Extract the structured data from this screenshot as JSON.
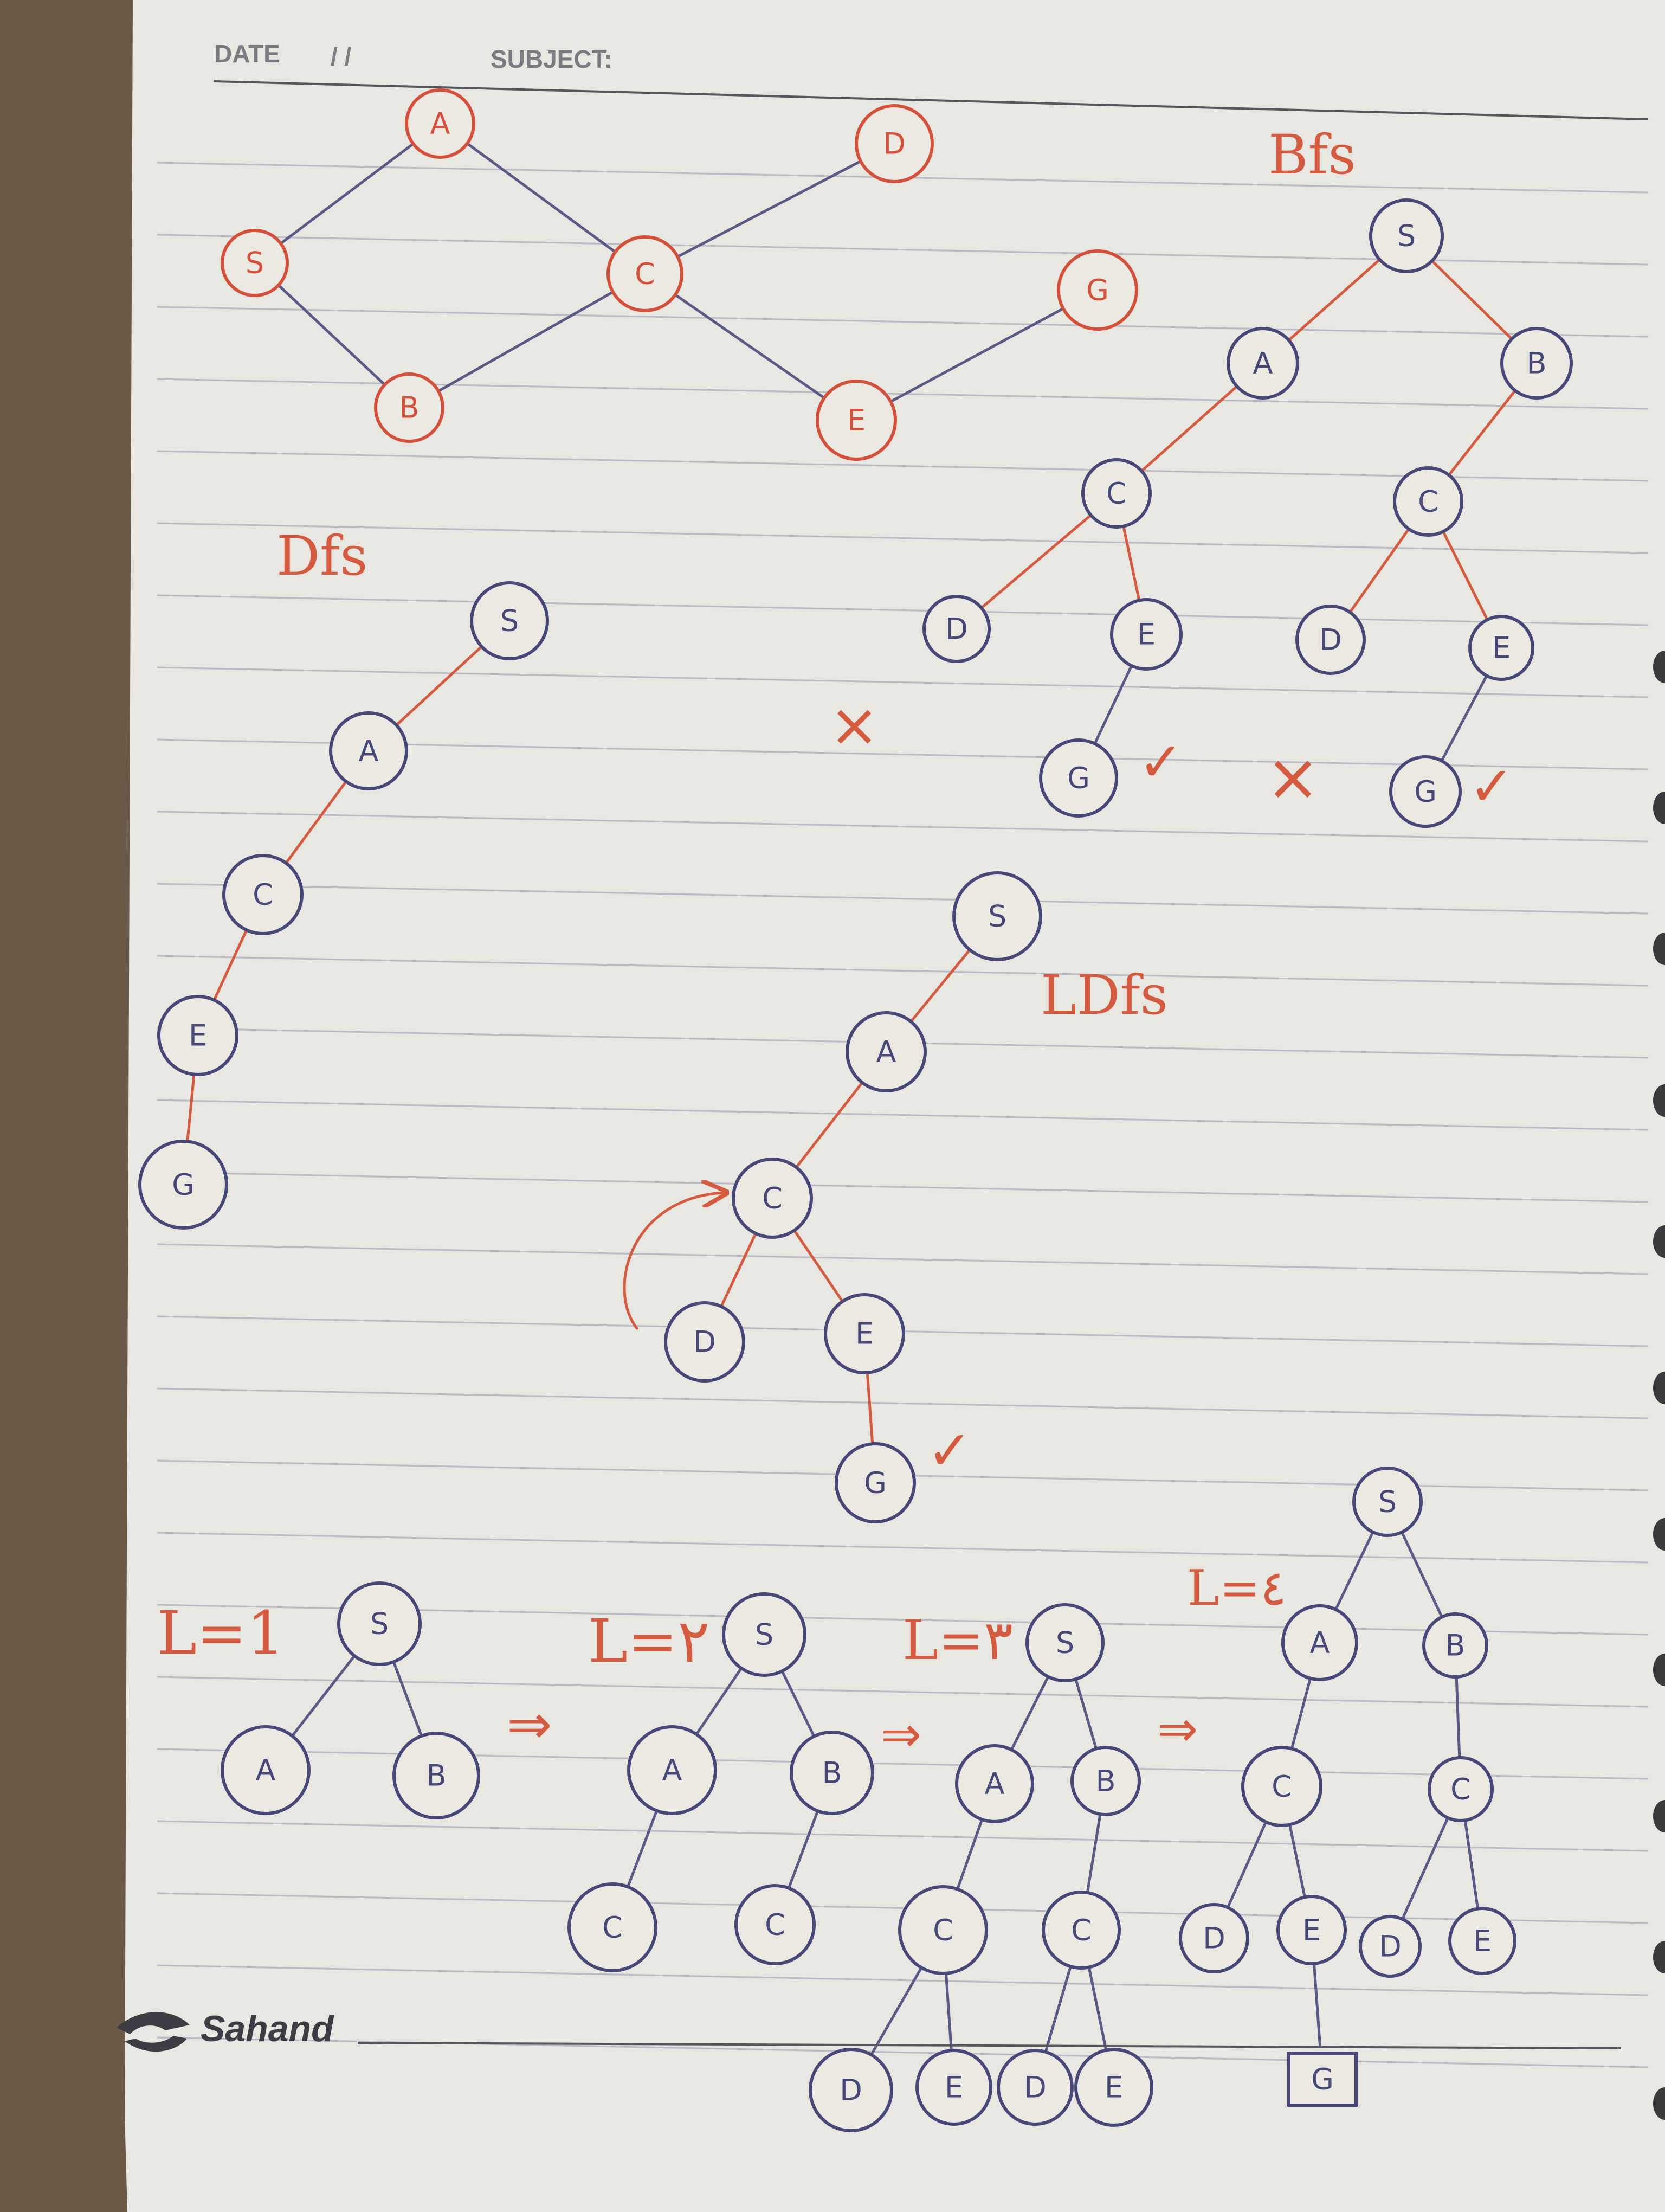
{
  "header": {
    "date_label": "DATE",
    "date_separators": "/   /",
    "subject_label": "SUBJECT:"
  },
  "footer": {
    "brand": "Sahand"
  },
  "colors": {
    "ink_blue": "#474878",
    "ink_red": "#d4503a",
    "paper": "#e9e7e1",
    "rule_line": "#b9bcc7"
  },
  "section_labels": {
    "bfs": "Bfs",
    "dfs": "Dfs",
    "ldfs": "LDfs",
    "l1": "L=1",
    "l2": "L=٢",
    "l3": "L=٣",
    "l4": "L=٤"
  },
  "marks": {
    "check": "✓",
    "cross": "×",
    "arrow": "⇒"
  },
  "graph": {
    "nodes": [
      "S",
      "A",
      "B",
      "C",
      "D",
      "E",
      "G"
    ],
    "edges": [
      [
        "S",
        "A"
      ],
      [
        "S",
        "B"
      ],
      [
        "A",
        "C"
      ],
      [
        "B",
        "C"
      ],
      [
        "C",
        "D"
      ],
      [
        "C",
        "E"
      ],
      [
        "E",
        "G"
      ]
    ]
  },
  "bfs_tree": {
    "root": "S",
    "children": [
      "A",
      "B"
    ],
    "branch_A": [
      "C",
      "D",
      "E",
      "G"
    ],
    "branch_B": [
      "C",
      "D",
      "E",
      "G"
    ],
    "rejected_marks": 2,
    "goal_checks": 2
  },
  "dfs_path": [
    "S",
    "A",
    "C",
    "E",
    "G"
  ],
  "ldfs_tree": {
    "path": [
      "S",
      "A",
      "C"
    ],
    "children_of_C": [
      "D",
      "E"
    ],
    "goal": "G"
  },
  "iterative_deepening": {
    "levels": [
      "L=1",
      "L=٢",
      "L=٣",
      "L=٤"
    ],
    "goal_boxed": "G"
  }
}
